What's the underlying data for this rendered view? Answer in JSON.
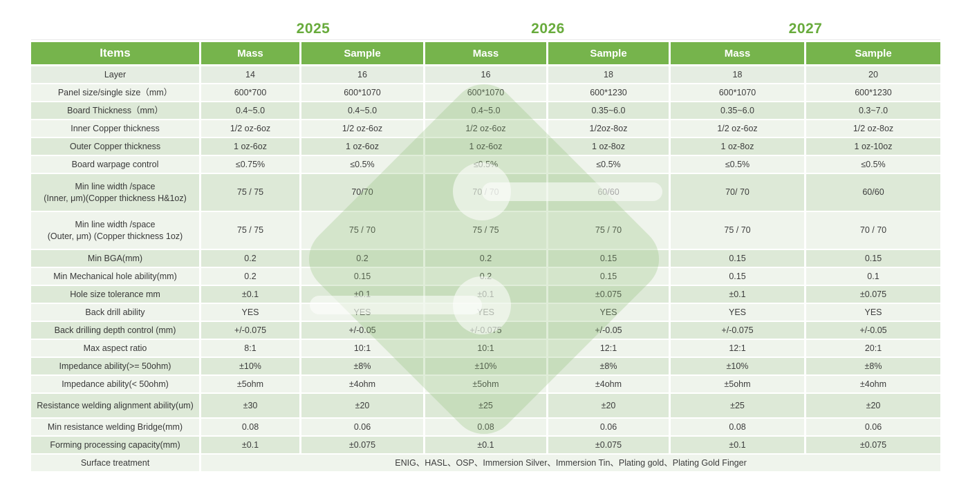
{
  "colors": {
    "accent_green": "#76b44c",
    "year_green": "#68ab3c",
    "row_sage": "#dde9d7",
    "row_light": "#eff4ec",
    "text_dark": "#3c3c3c"
  },
  "years": [
    "2025",
    "2026",
    "2027"
  ],
  "header": {
    "items": "Items",
    "cols": [
      "Mass",
      "Sample",
      "Mass",
      "Sample",
      "Mass",
      "Sample"
    ]
  },
  "table": {
    "rows": [
      {
        "label": "Layer",
        "values": [
          "14",
          "16",
          "16",
          "18",
          "18",
          "20"
        ]
      },
      {
        "label": "Panel size/single size（mm）",
        "values": [
          "600*700",
          "600*1070",
          "600*1070",
          "600*1230",
          "600*1070",
          "600*1230"
        ]
      },
      {
        "label": "Board Thickness（mm）",
        "values": [
          "0.4~5.0",
          "0.4~5.0",
          "0.4~5.0",
          "0.35~6.0",
          "0.35~6.0",
          "0.3~7.0"
        ]
      },
      {
        "label": "Inner Copper thickness",
        "values": [
          "1/2 oz-6oz",
          "1/2 oz-6oz",
          "1/2 oz-6oz",
          "1/2oz-8oz",
          "1/2 oz-6oz",
          "1/2 oz-8oz"
        ]
      },
      {
        "label": "Outer Copper thickness",
        "values": [
          "1 oz-6oz",
          "1 oz-6oz",
          "1 oz-6oz",
          "1 oz-8oz",
          "1 oz-8oz",
          "1 oz-10oz"
        ]
      },
      {
        "label": "Board warpage control",
        "values": [
          "≤0.75%",
          "≤0.5%",
          "≤0.5%",
          "≤0.5%",
          "≤0.5%",
          "≤0.5%"
        ]
      },
      {
        "label": "Min line width /space\n(Inner, μm)(Copper thickness H&1oz)",
        "values": [
          "75 / 75",
          "70/70",
          "70 / 70",
          "60/60",
          "70/ 70",
          "60/60"
        ]
      },
      {
        "label": "Min line width /space\n(Outer, μm) (Copper thickness 1oz)",
        "values": [
          "75 / 75",
          "75 / 70",
          "75 / 75",
          "75 / 70",
          "75 / 70",
          "70 / 70"
        ]
      },
      {
        "label": "Min BGA(mm)",
        "values": [
          "0.2",
          "0.2",
          "0.2",
          "0.15",
          "0.15",
          "0.15"
        ]
      },
      {
        "label": "Min Mechanical hole ability(mm)",
        "values": [
          "0.2",
          "0.15",
          "0.2",
          "0.15",
          "0.15",
          "0.1"
        ]
      },
      {
        "label": "Hole size tolerance mm",
        "values": [
          "±0.1",
          "±0.1",
          "±0.1",
          "±0.075",
          "±0.1",
          "±0.075"
        ]
      },
      {
        "label": "Back drill ability",
        "values": [
          "YES",
          "YES",
          "YES",
          "YES",
          "YES",
          "YES"
        ]
      },
      {
        "label": "Back drilling depth control (mm)",
        "values": [
          "+/-0.075",
          "+/-0.05",
          "+/-0.075",
          "+/-0.05",
          "+/-0.075",
          "+/-0.05"
        ]
      },
      {
        "label": "Max aspect ratio",
        "values": [
          "8:1",
          "10:1",
          "10:1",
          "12:1",
          "12:1",
          "20:1"
        ]
      },
      {
        "label": "Impedance ability(>= 50ohm)",
        "values": [
          "±10%",
          "±8%",
          "±10%",
          "±8%",
          "±10%",
          "±8%"
        ]
      },
      {
        "label": "Impedance ability(< 50ohm)",
        "values": [
          "±5ohm",
          "±4ohm",
          "±5ohm",
          "±4ohm",
          "±5ohm",
          "±4ohm"
        ]
      },
      {
        "label": "Resistance welding alignment ability(um)",
        "values": [
          "±30",
          "±20",
          "±25",
          "±20",
          "±25",
          "±20"
        ]
      },
      {
        "label": "Min resistance welding Bridge(mm)",
        "values": [
          "0.08",
          "0.06",
          "0.08",
          "0.06",
          "0.08",
          "0.06"
        ]
      },
      {
        "label": "Forming processing capacity(mm)",
        "values": [
          "±0.1",
          "±0.075",
          "±0.1",
          "±0.075",
          "±0.1",
          "±0.075"
        ]
      }
    ],
    "surface_row": {
      "label": "Surface treatment",
      "value": "ENIG、HASL、OSP、Immersion Silver、Immersion Tin、Plating gold、Plating Gold Finger"
    }
  }
}
